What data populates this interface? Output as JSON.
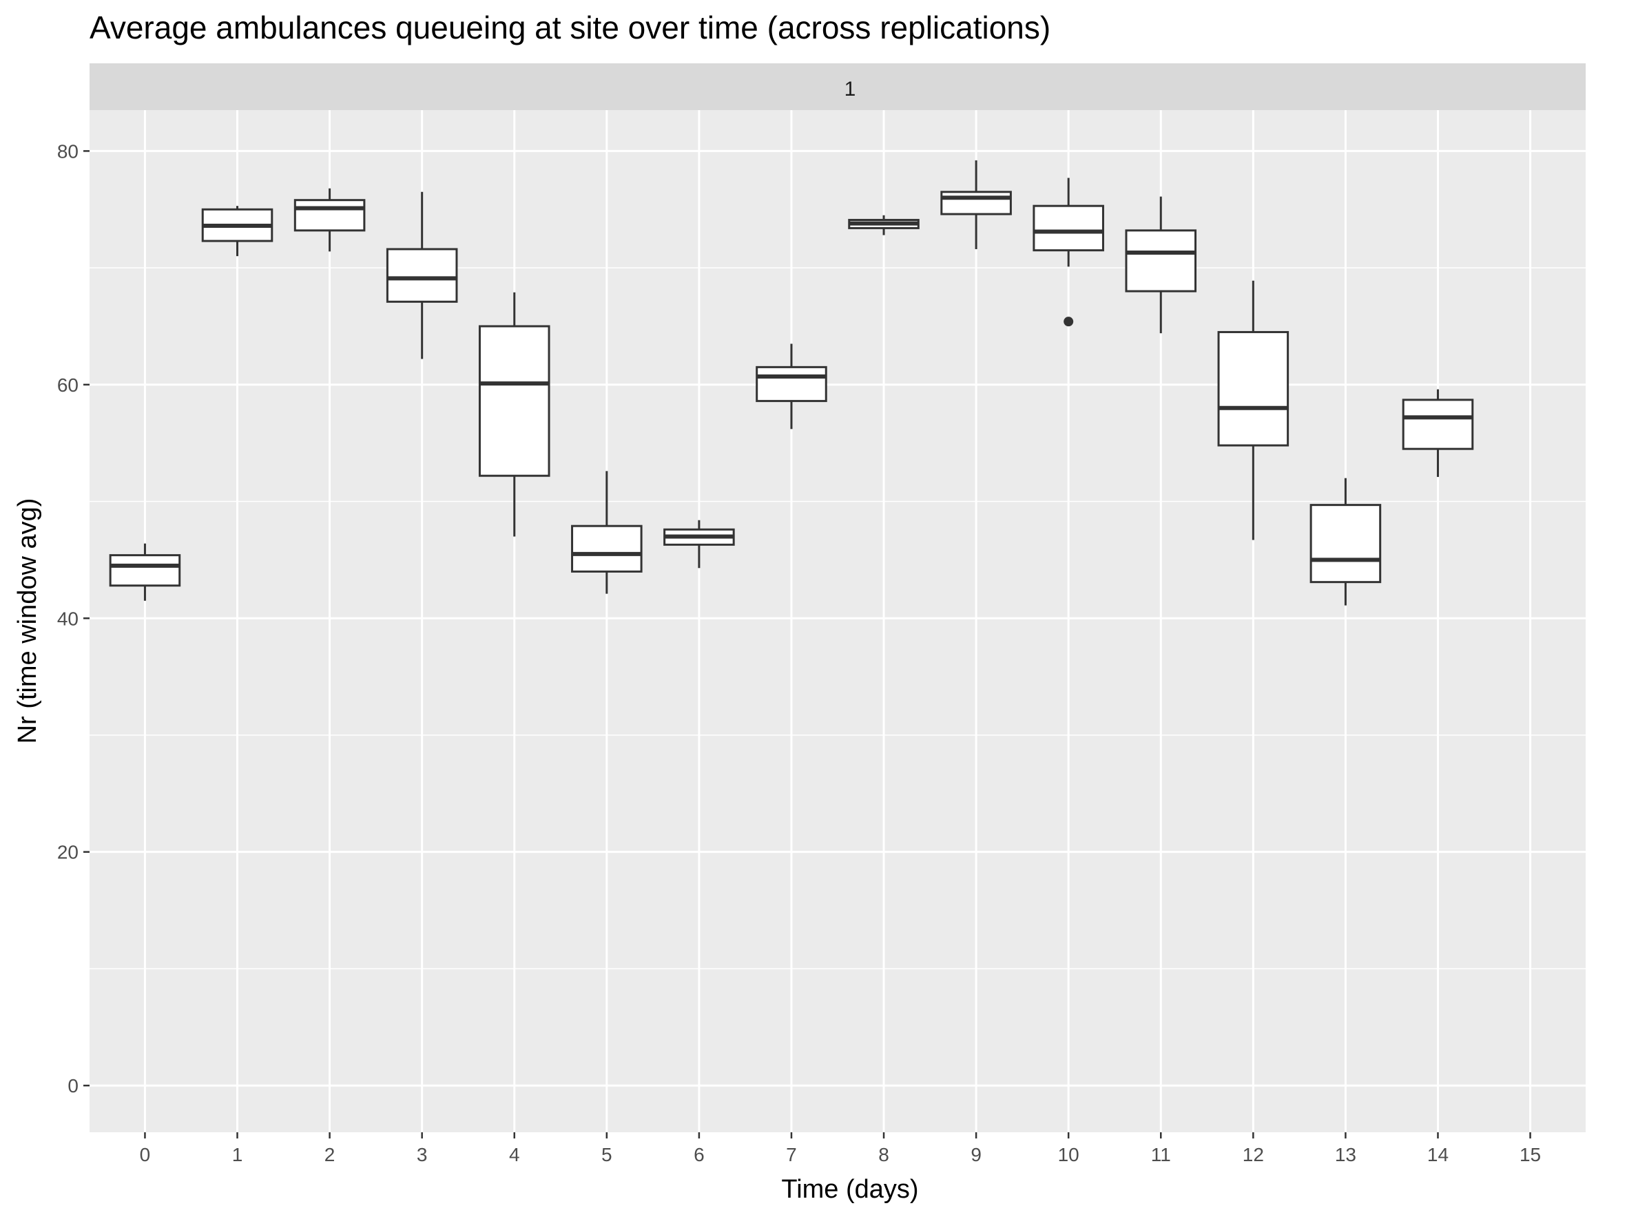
{
  "chart_data": {
    "type": "box",
    "title": "Average ambulances queueing at site over time (across replications)",
    "facet_label": "1",
    "xlabel": "Time (days)",
    "ylabel": "Nr (time window avg)",
    "xlim": [
      -0.6,
      15.6
    ],
    "ylim": [
      -4,
      83.5
    ],
    "x_ticks": [
      "0",
      "1",
      "2",
      "3",
      "4",
      "5",
      "6",
      "7",
      "8",
      "9",
      "10",
      "11",
      "12",
      "13",
      "14",
      "15"
    ],
    "y_ticks": [
      "0",
      "20",
      "40",
      "60",
      "80"
    ],
    "grid": true,
    "series": [
      {
        "boxes": [
          {
            "x": 0,
            "min": 41.5,
            "q1": 42.8,
            "median": 44.5,
            "q3": 45.4,
            "max": 46.4
          },
          {
            "x": 1,
            "min": 71.0,
            "q1": 72.3,
            "median": 73.6,
            "q3": 75.0,
            "max": 75.3
          },
          {
            "x": 2,
            "min": 71.4,
            "q1": 73.2,
            "median": 75.1,
            "q3": 75.8,
            "max": 76.8
          },
          {
            "x": 3,
            "min": 62.2,
            "q1": 67.1,
            "median": 69.1,
            "q3": 71.6,
            "max": 76.5
          },
          {
            "x": 4,
            "min": 47.0,
            "q1": 52.2,
            "median": 60.1,
            "q3": 65.0,
            "max": 67.9
          },
          {
            "x": 5,
            "min": 42.1,
            "q1": 44.0,
            "median": 45.5,
            "q3": 47.9,
            "max": 52.6
          },
          {
            "x": 6,
            "min": 44.3,
            "q1": 46.3,
            "median": 47.0,
            "q3": 47.6,
            "max": 48.4
          },
          {
            "x": 7,
            "min": 56.2,
            "q1": 58.6,
            "median": 60.7,
            "q3": 61.5,
            "max": 63.5
          },
          {
            "x": 8,
            "min": 72.8,
            "q1": 73.4,
            "median": 73.8,
            "q3": 74.1,
            "max": 74.5
          },
          {
            "x": 9,
            "min": 71.6,
            "q1": 74.6,
            "median": 76.0,
            "q3": 76.5,
            "max": 79.2
          },
          {
            "x": 10,
            "min": 70.1,
            "q1": 71.5,
            "median": 73.1,
            "q3": 75.3,
            "max": 77.7,
            "outliers": [
              65.4
            ]
          },
          {
            "x": 11,
            "min": 64.4,
            "q1": 68.0,
            "median": 71.3,
            "q3": 73.2,
            "max": 76.1
          },
          {
            "x": 12,
            "min": 46.7,
            "q1": 54.8,
            "median": 58.0,
            "q3": 64.5,
            "max": 68.9
          },
          {
            "x": 13,
            "min": 41.1,
            "q1": 43.1,
            "median": 45.0,
            "q3": 49.7,
            "max": 52.0
          },
          {
            "x": 14,
            "min": 52.1,
            "q1": 54.5,
            "median": 57.2,
            "q3": 58.7,
            "max": 59.6
          }
        ]
      }
    ]
  },
  "colors": {
    "panel_bg": "#ebebeb",
    "strip_bg": "#d9d9d9",
    "grid": "#ffffff",
    "box_line": "#333333",
    "box_fill": "#ffffff",
    "tick_text": "#4d4d4d",
    "tick_mark": "#333333"
  }
}
